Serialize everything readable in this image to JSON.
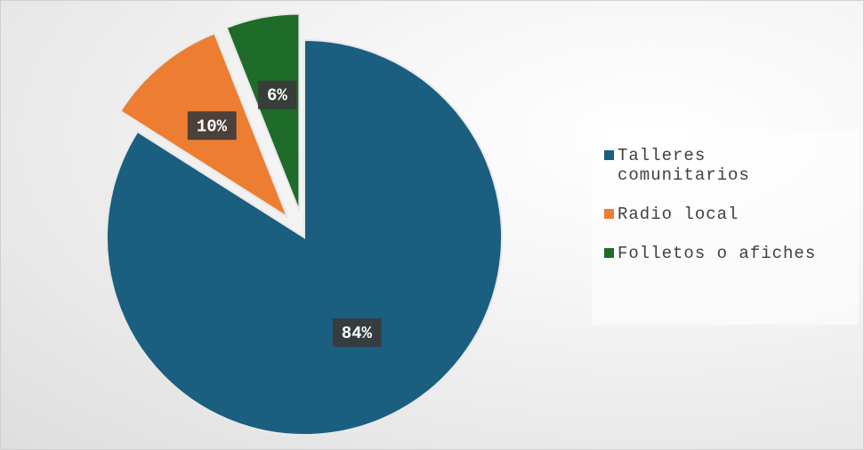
{
  "chart_data": {
    "type": "pie",
    "categories": [
      "Talleres comunitarios",
      "Radio local",
      "Folletos o afiches"
    ],
    "values": [
      84,
      10,
      6
    ],
    "value_labels": [
      "84%",
      "10%",
      "6%"
    ],
    "colors": [
      "#1a5e80",
      "#ed7d31",
      "#1e6b2a"
    ],
    "legend": "right"
  }
}
